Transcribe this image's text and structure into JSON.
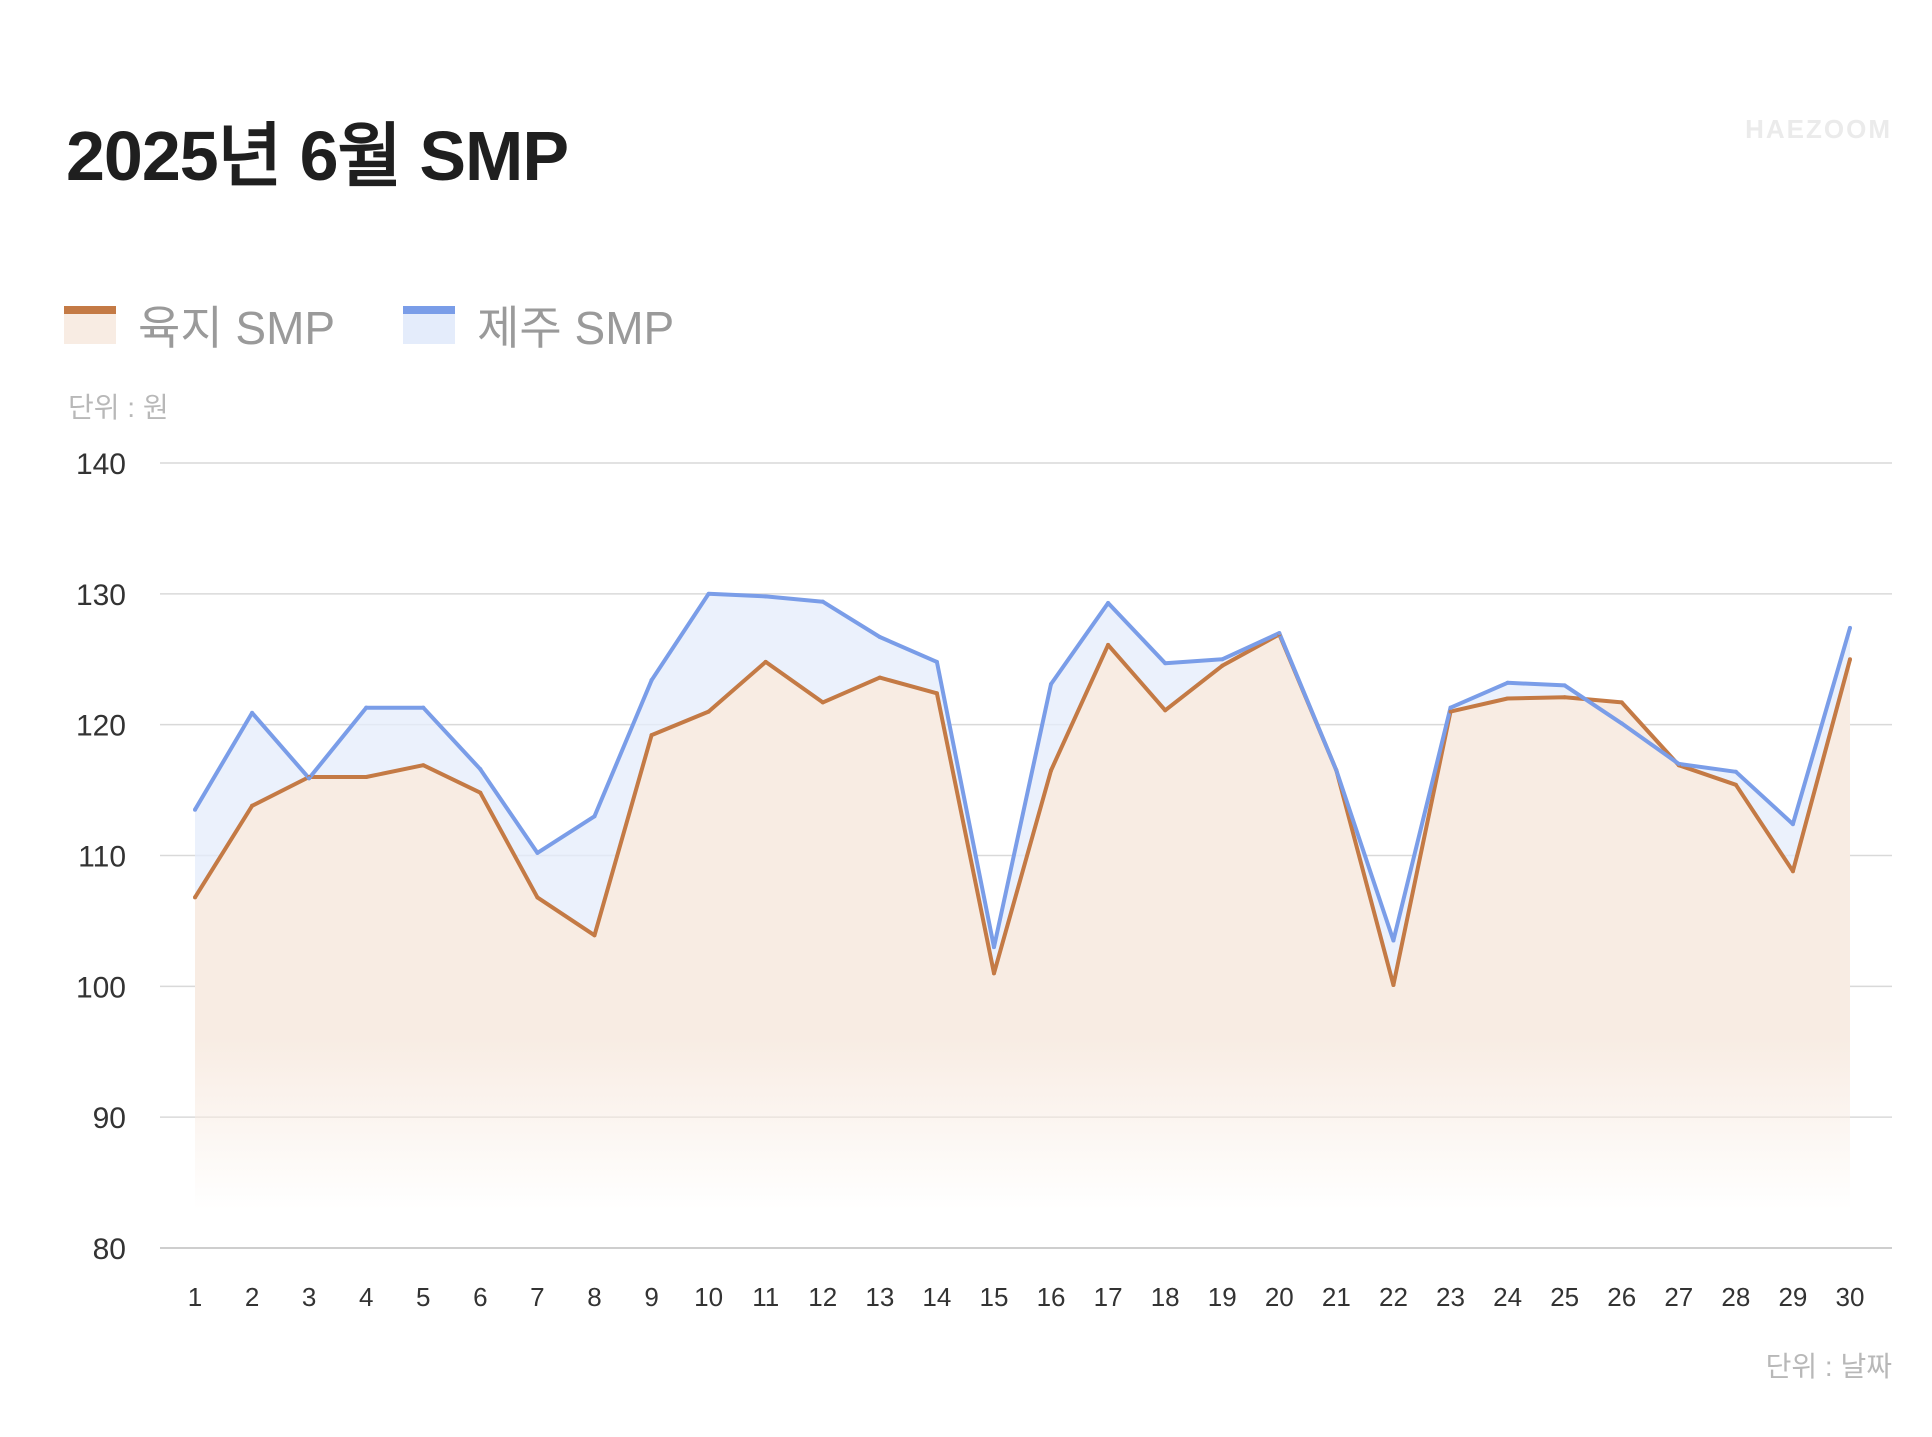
{
  "title": "2025년 6월 SMP",
  "brand": "HAEZOOM",
  "unit_y": "단위 : 원",
  "unit_x": "단위 : 날짜",
  "colors": {
    "land_line": "#c47a45",
    "land_fill": "#f8ece3",
    "jeju_line": "#7a9de8",
    "jeju_fill": "#e4ecfb",
    "grid": "#d9d9d9"
  },
  "chart_data": {
    "type": "area",
    "xlabel": "",
    "ylabel": "",
    "ylim": [
      80,
      140
    ],
    "yticks": [
      140,
      130,
      120,
      110,
      100,
      90,
      80
    ],
    "grid": true,
    "legend_position": "top-left",
    "categories": [
      "1",
      "2",
      "3",
      "4",
      "5",
      "6",
      "7",
      "8",
      "9",
      "10",
      "11",
      "12",
      "13",
      "14",
      "15",
      "16",
      "17",
      "18",
      "19",
      "20",
      "21",
      "22",
      "23",
      "24",
      "25",
      "26",
      "27",
      "28",
      "29",
      "30"
    ],
    "series": [
      {
        "name": "육지 SMP",
        "values": [
          106.8,
          113.8,
          116.0,
          116.0,
          116.9,
          114.8,
          106.8,
          103.9,
          119.2,
          121.0,
          124.8,
          121.7,
          123.6,
          122.4,
          101.0,
          116.5,
          126.1,
          121.1,
          124.5,
          126.9,
          116.5,
          100.1,
          121.0,
          122.0,
          122.1,
          121.7,
          116.9,
          115.4,
          108.8,
          125.0
        ]
      },
      {
        "name": "제주 SMP",
        "values": [
          113.5,
          120.9,
          115.9,
          121.3,
          121.3,
          116.6,
          110.2,
          113.0,
          123.4,
          130.0,
          129.8,
          129.4,
          126.7,
          124.8,
          103.0,
          123.1,
          129.3,
          124.7,
          125.0,
          127.0,
          116.5,
          103.5,
          121.3,
          123.2,
          123.0,
          120.1,
          117.0,
          116.4,
          112.4,
          127.4
        ]
      }
    ]
  }
}
